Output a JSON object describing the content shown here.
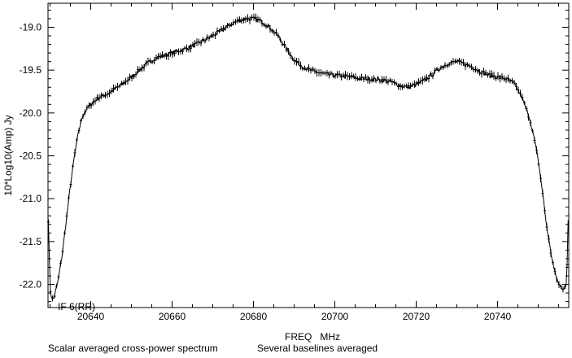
{
  "chart_data": {
    "type": "line",
    "title": "",
    "xlabel": "FREQ   MHz",
    "ylabel": "10*Log10(Amp) Jy",
    "xlim": [
      20629.5,
      20757.5
    ],
    "ylim": [
      -22.27,
      -18.72
    ],
    "x_ticks": [
      20640,
      20660,
      20680,
      20700,
      20720,
      20740
    ],
    "x_tick_labels": [
      "20640",
      "20660",
      "20680",
      "20700",
      "20720",
      "20740"
    ],
    "y_ticks": [
      -19.0,
      -19.5,
      -20.0,
      -20.5,
      -21.0,
      -21.5,
      -22.0
    ],
    "y_tick_labels": [
      "-19.0",
      "-19.5",
      "-20.0",
      "-20.5",
      "-21.0",
      "-21.5",
      "-22.0"
    ],
    "grid": false,
    "error_bars": true,
    "annotation": "IF 6(RR)",
    "captions": [
      "Scalar averaged cross-power spectrum",
      "Several baselines averaged"
    ],
    "series": [
      {
        "x": [
          20629.6,
          20630.0,
          20630.5,
          20631.0,
          20632.0,
          20633.0,
          20634.0,
          20635.0,
          20636.0,
          20637.0,
          20638.0,
          20639.0,
          20640.0,
          20642.0,
          20644.0,
          20646.0,
          20648.0,
          20650.0,
          20652.0,
          20654.0,
          20656.0,
          20658.0,
          20660.0,
          20662.0,
          20664.0,
          20666.0,
          20668.0,
          20670.0,
          20672.0,
          20674.0,
          20676.0,
          20678.0,
          20680.0,
          20682.0,
          20684.0,
          20686.0,
          20688.0,
          20690.0,
          20692.0,
          20694.0,
          20696.0,
          20698.0,
          20700.0,
          20702.0,
          20704.0,
          20706.0,
          20708.0,
          20710.0,
          20712.0,
          20714.0,
          20716.0,
          20718.0,
          20720.0,
          20722.0,
          20724.0,
          20726.0,
          20728.0,
          20730.0,
          20732.0,
          20734.0,
          20736.0,
          20738.0,
          20740.0,
          20742.0,
          20744.0,
          20746.0,
          20748.0,
          20749.0,
          20750.0,
          20751.0,
          20752.0,
          20753.0,
          20754.0,
          20755.0,
          20756.0,
          20757.0,
          20757.4
        ],
        "y": [
          -21.25,
          -22.05,
          -22.18,
          -22.15,
          -21.95,
          -21.65,
          -21.25,
          -20.85,
          -20.5,
          -20.22,
          -20.03,
          -19.96,
          -19.9,
          -19.82,
          -19.78,
          -19.72,
          -19.66,
          -19.58,
          -19.5,
          -19.42,
          -19.36,
          -19.33,
          -19.3,
          -19.27,
          -19.24,
          -19.2,
          -19.15,
          -19.1,
          -19.04,
          -18.98,
          -18.93,
          -18.9,
          -18.9,
          -18.93,
          -19.0,
          -19.1,
          -19.24,
          -19.38,
          -19.46,
          -19.5,
          -19.53,
          -19.55,
          -19.56,
          -19.57,
          -19.58,
          -19.6,
          -19.6,
          -19.61,
          -19.62,
          -19.64,
          -19.68,
          -19.7,
          -19.67,
          -19.62,
          -19.55,
          -19.47,
          -19.42,
          -19.4,
          -19.43,
          -19.47,
          -19.52,
          -19.56,
          -19.58,
          -19.6,
          -19.65,
          -19.82,
          -20.08,
          -20.3,
          -20.55,
          -20.9,
          -21.3,
          -21.6,
          -21.85,
          -22.0,
          -22.05,
          -22.0,
          -21.15
        ]
      }
    ]
  }
}
